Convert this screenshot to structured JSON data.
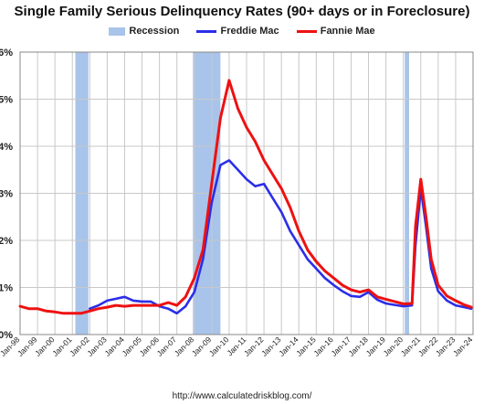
{
  "chart_data": {
    "type": "line",
    "title": "Single Family Serious Delinquency Rates (90+ days or in Foreclosure)",
    "source": "http://www.calculatedriskblog.com/",
    "xlabel": "",
    "ylabel": "",
    "ylim": [
      0,
      6
    ],
    "y_ticks": [
      0,
      1,
      2,
      3,
      4,
      5,
      6
    ],
    "y_tick_labels": [
      "0%",
      "1%",
      "2%",
      "3%",
      "4%",
      "5%",
      "6%"
    ],
    "x_ticks": [
      "Jan-98",
      "Jan-99",
      "Jan-00",
      "Jan-01",
      "Jan-02",
      "Jan-03",
      "Jan-04",
      "Jan-05",
      "Jan-06",
      "Jan-07",
      "Jan-08",
      "Jan-09",
      "Jan-10",
      "Jan-11",
      "Jan-12",
      "Jan-13",
      "Jan-14",
      "Jan-15",
      "Jan-16",
      "Jan-17",
      "Jan-18",
      "Jan-19",
      "Jan-20",
      "Jan-21",
      "Jan-22",
      "Jan-23",
      "Jan-24"
    ],
    "grid": true,
    "legend": {
      "placement": "top",
      "items": [
        "Recession",
        "Freddie Mac",
        "Fannie Mae"
      ]
    },
    "colors": {
      "recession": "#a9c4ea",
      "freddie": "#2b2ee8",
      "fannie": "#ee1111",
      "grid": "#c8c8c8"
    },
    "recessions": [
      {
        "start": 2001.17,
        "end": 2001.92
      },
      {
        "start": 2007.92,
        "end": 2009.5
      },
      {
        "start": 2020.08,
        "end": 2020.33
      }
    ],
    "series": [
      {
        "name": "Freddie Mac",
        "x": [
          2002.0,
          2002.5,
          2003.0,
          2003.5,
          2004.0,
          2004.5,
          2005.0,
          2005.5,
          2006.0,
          2006.5,
          2007.0,
          2007.5,
          2008.0,
          2008.5,
          2009.0,
          2009.5,
          2010.0,
          2010.5,
          2011.0,
          2011.5,
          2012.0,
          2012.5,
          2013.0,
          2013.5,
          2014.0,
          2014.5,
          2015.0,
          2015.5,
          2016.0,
          2016.5,
          2017.0,
          2017.5,
          2018.0,
          2018.5,
          2019.0,
          2019.5,
          2020.0,
          2020.5,
          2020.7,
          2021.0,
          2021.3,
          2021.6,
          2022.0,
          2022.5,
          2023.0,
          2023.5,
          2023.9
        ],
        "y": [
          0.55,
          0.62,
          0.72,
          0.76,
          0.8,
          0.72,
          0.7,
          0.7,
          0.6,
          0.55,
          0.45,
          0.6,
          0.9,
          1.6,
          2.8,
          3.6,
          3.7,
          3.5,
          3.3,
          3.15,
          3.2,
          2.9,
          2.6,
          2.2,
          1.9,
          1.6,
          1.4,
          1.2,
          1.05,
          0.92,
          0.82,
          0.8,
          0.9,
          0.74,
          0.66,
          0.63,
          0.6,
          0.62,
          1.9,
          3.1,
          2.3,
          1.4,
          0.92,
          0.72,
          0.62,
          0.58,
          0.55
        ]
      },
      {
        "name": "Fannie Mae",
        "x": [
          1998.0,
          1998.5,
          1999.0,
          1999.5,
          2000.0,
          2000.5,
          2001.0,
          2001.5,
          2002.0,
          2002.5,
          2003.0,
          2003.5,
          2004.0,
          2004.5,
          2005.0,
          2005.5,
          2006.0,
          2006.5,
          2007.0,
          2007.5,
          2008.0,
          2008.5,
          2009.0,
          2009.5,
          2010.0,
          2010.5,
          2011.0,
          2011.5,
          2012.0,
          2012.5,
          2013.0,
          2013.5,
          2014.0,
          2014.5,
          2015.0,
          2015.5,
          2016.0,
          2016.5,
          2017.0,
          2017.5,
          2018.0,
          2018.5,
          2019.0,
          2019.5,
          2020.0,
          2020.5,
          2020.7,
          2021.0,
          2021.3,
          2021.6,
          2022.0,
          2022.5,
          2023.0,
          2023.5,
          2023.9
        ],
        "y": [
          0.6,
          0.55,
          0.55,
          0.5,
          0.48,
          0.45,
          0.45,
          0.45,
          0.5,
          0.55,
          0.58,
          0.62,
          0.6,
          0.62,
          0.62,
          0.62,
          0.62,
          0.68,
          0.62,
          0.8,
          1.2,
          1.8,
          3.2,
          4.6,
          5.4,
          4.8,
          4.4,
          4.1,
          3.7,
          3.4,
          3.1,
          2.7,
          2.2,
          1.8,
          1.55,
          1.35,
          1.2,
          1.05,
          0.95,
          0.9,
          0.95,
          0.8,
          0.75,
          0.7,
          0.65,
          0.66,
          2.3,
          3.3,
          2.5,
          1.6,
          1.05,
          0.82,
          0.72,
          0.63,
          0.58
        ]
      }
    ]
  }
}
